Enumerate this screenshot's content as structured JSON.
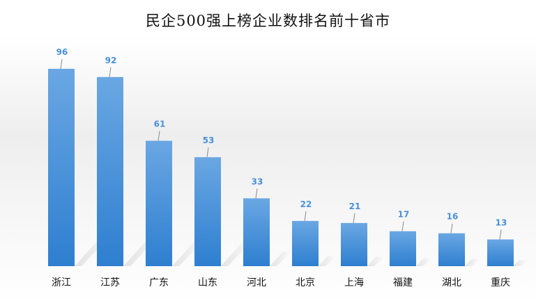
{
  "chart_data": {
    "type": "bar",
    "title": "民企500强上榜企业数排名前十省市",
    "xlabel": "",
    "ylabel": "",
    "categories": [
      "浙江",
      "江苏",
      "广东",
      "山东",
      "河北",
      "北京",
      "上海",
      "福建",
      "湖北",
      "重庆"
    ],
    "values": [
      96,
      92,
      61,
      53,
      33,
      22,
      21,
      17,
      16,
      13
    ],
    "ylim": [
      0,
      96
    ],
    "grid": false,
    "legend": "none",
    "data_labels": true
  },
  "colors": {
    "bar_top": "#6aa7e3",
    "bar_bottom": "#2e7fd0",
    "label": "#4a90d9",
    "leader": "#8a8a8a",
    "category_text": "#111111"
  }
}
